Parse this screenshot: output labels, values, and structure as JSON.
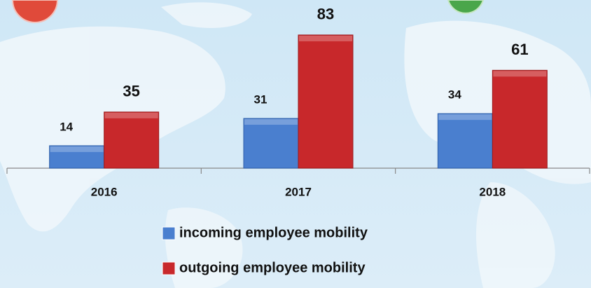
{
  "chart_data": {
    "type": "bar",
    "categories": [
      "2016",
      "2017",
      "2018"
    ],
    "series": [
      {
        "name": "incoming employee mobility",
        "color": "#4a7fcf",
        "values": [
          14,
          31,
          34
        ]
      },
      {
        "name": "outgoing employee mobility",
        "color": "#c8282b",
        "values": [
          35,
          83,
          61
        ]
      }
    ]
  }
}
